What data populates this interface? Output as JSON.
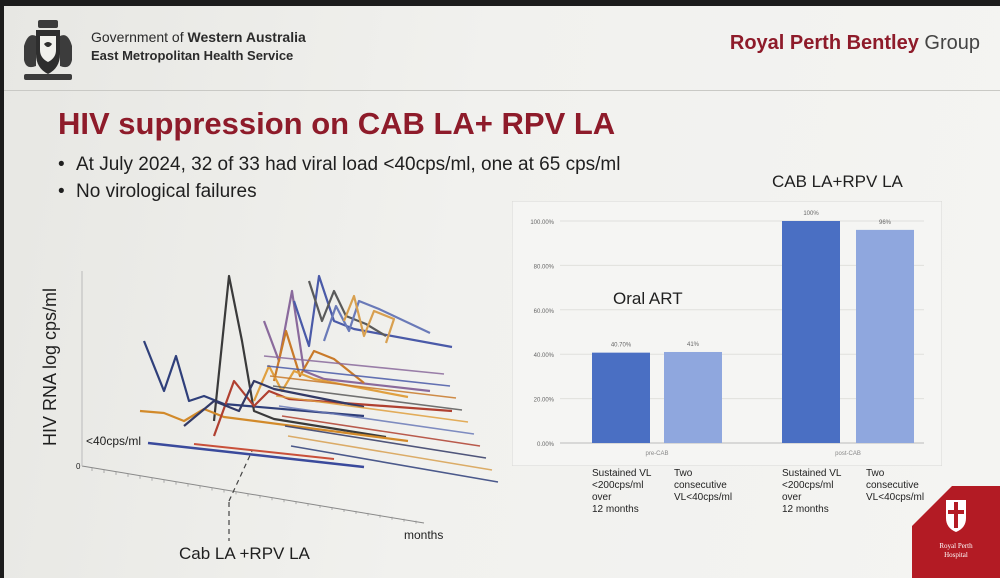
{
  "header": {
    "gov_line1_prefix": "Government of ",
    "gov_line1_bold": "Western Australia",
    "gov_line2": "East Metropolitan Health Service",
    "org_bold": "Royal Perth Bentley",
    "org_rest": " Group"
  },
  "title": "HIV suppression on CAB LA+ RPV LA",
  "bullets": [
    "At July 2024, 32 of 33 had viral load <40cps/ml, one at 65 cps/ml",
    "No virological failures"
  ],
  "left_chart": {
    "ylabel": "HIV RNA log cps/ml",
    "threshold_label": "<40cps/ml",
    "xlabel": "months",
    "marker_label": "Cab LA +RPV LA",
    "zero_label": "0"
  },
  "chart_data": {
    "type": "bar",
    "groups": [
      "pre-CAB",
      "post-CAB"
    ],
    "group_titles": [
      "Oral ART",
      "CAB LA+RPV LA"
    ],
    "yticks": [
      "0.00%",
      "20.00%",
      "40.00%",
      "60.00%",
      "80.00%",
      "100.00%"
    ],
    "ylim": [
      0,
      100
    ],
    "bars": [
      {
        "group": "pre-CAB",
        "value": 40.7,
        "data_label": "40.70%",
        "label": "Sustained VL <200cps/ml over 12 months",
        "color": "#4a6fc3"
      },
      {
        "group": "pre-CAB",
        "value": 41,
        "data_label": "41%",
        "label": "Two consecutive VL<40cps/ml",
        "color": "#8fa7de"
      },
      {
        "group": "post-CAB",
        "value": 100,
        "data_label": "100%",
        "label": "Sustained VL <200cps/ml over 12 months",
        "color": "#4a6fc3"
      },
      {
        "group": "post-CAB",
        "value": 96,
        "data_label": "96%",
        "label": "Two consecutive VL<40cps/ml",
        "color": "#8fa7de"
      }
    ],
    "bar_captions": [
      [
        "Sustained VL",
        "<200cps/ml",
        "over",
        "12 months"
      ],
      [
        "Two",
        "consecutive",
        "VL<40cps/ml"
      ],
      [
        "Sustained VL",
        "<200cps/ml",
        "over",
        "12 months"
      ],
      [
        "Two",
        "consecutive",
        "VL<40cps/ml"
      ]
    ]
  },
  "logo": {
    "text1": "Royal Perth",
    "text2": "Hospital"
  }
}
